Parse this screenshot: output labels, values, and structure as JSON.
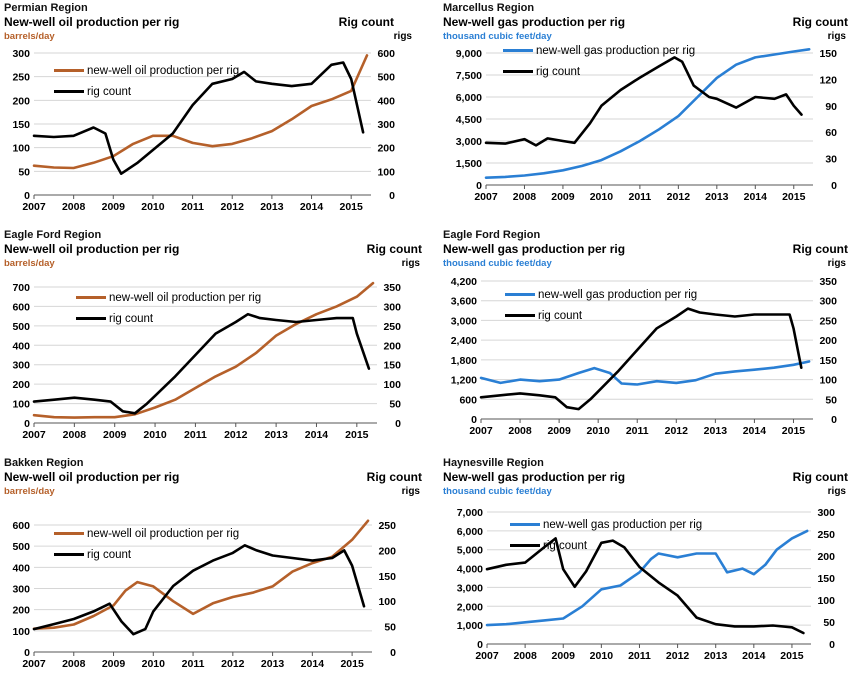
{
  "colors": {
    "oil": "#b5602a",
    "gas": "#2a7fd4",
    "rig": "#000000"
  },
  "chart_data": [
    {
      "type": "line",
      "region": "Permian Region",
      "title": "New-well oil production per rig",
      "ylabel": "barrels/day",
      "y2title": "Rig count",
      "y2label": "rigs",
      "ylim": [
        0,
        300
      ],
      "yticks": [
        0,
        50,
        100,
        150,
        200,
        250,
        300
      ],
      "ytick_labels": [
        "0",
        "50",
        "100",
        "150",
        "200",
        "250",
        "300"
      ],
      "y2lim": [
        0,
        600
      ],
      "y2ticks": [
        0,
        100,
        200,
        300,
        400,
        500,
        600
      ],
      "xlim": [
        2007,
        2015.5
      ],
      "xticks": [
        "2007",
        "2008",
        "2009",
        "2010",
        "2011",
        "2012",
        "2013",
        "2014",
        "2015"
      ],
      "series": [
        {
          "name": "new-well oil production per rig",
          "axis": "left",
          "color_key": "oil",
          "x": [
            2007.0,
            2007.5,
            2008.0,
            2008.5,
            2009.0,
            2009.5,
            2010.0,
            2010.5,
            2011.0,
            2011.5,
            2012.0,
            2012.5,
            2013.0,
            2013.5,
            2014.0,
            2014.5,
            2015.0,
            2015.4
          ],
          "y": [
            62,
            58,
            57,
            68,
            82,
            108,
            125,
            125,
            110,
            103,
            108,
            120,
            135,
            160,
            188,
            202,
            220,
            295
          ]
        },
        {
          "name": "rig count",
          "axis": "right",
          "color_key": "rig",
          "x": [
            2007.0,
            2007.5,
            2008.0,
            2008.5,
            2008.8,
            2009.0,
            2009.2,
            2009.6,
            2010.0,
            2010.5,
            2011.0,
            2011.5,
            2012.0,
            2012.3,
            2012.6,
            2013.0,
            2013.5,
            2014.0,
            2014.5,
            2014.8,
            2015.0,
            2015.3
          ],
          "y": [
            250,
            245,
            250,
            285,
            260,
            150,
            90,
            135,
            190,
            260,
            380,
            470,
            490,
            520,
            480,
            470,
            460,
            470,
            550,
            560,
            490,
            265
          ]
        }
      ]
    },
    {
      "type": "line",
      "region": "Marcellus Region",
      "title": "New-well gas production per rig",
      "ylabel": "thousand cubic feet/day",
      "y2title": "Rig count",
      "y2label": "rigs",
      "ylim": [
        0,
        9000
      ],
      "yticks": [
        0,
        1500,
        3000,
        4500,
        6000,
        7500,
        9000
      ],
      "ytick_labels": [
        "0",
        "1,500",
        "3,000",
        "4,500",
        "6,000",
        "7,500",
        "9,000"
      ],
      "y2lim": [
        0,
        150
      ],
      "y2ticks": [
        0,
        30,
        60,
        90,
        120,
        150
      ],
      "xlim": [
        2007,
        2015.5
      ],
      "xticks": [
        "2007",
        "2008",
        "2009",
        "2010",
        "2011",
        "2012",
        "2013",
        "2014",
        "2015"
      ],
      "series": [
        {
          "name": "new-well gas production per rig",
          "axis": "left",
          "color_key": "gas",
          "x": [
            2007.0,
            2007.5,
            2008.0,
            2008.5,
            2009.0,
            2009.5,
            2010.0,
            2010.5,
            2011.0,
            2011.5,
            2012.0,
            2012.5,
            2013.0,
            2013.5,
            2014.0,
            2014.5,
            2015.0,
            2015.4
          ],
          "y": [
            500,
            550,
            650,
            800,
            1000,
            1300,
            1700,
            2300,
            3000,
            3800,
            4700,
            6000,
            7300,
            8200,
            8700,
            8900,
            9100,
            9250
          ]
        },
        {
          "name": "rig count",
          "axis": "right",
          "color_key": "rig",
          "x": [
            2007.0,
            2007.5,
            2008.0,
            2008.3,
            2008.6,
            2009.0,
            2009.3,
            2009.7,
            2010.0,
            2010.5,
            2011.0,
            2011.5,
            2011.9,
            2012.1,
            2012.4,
            2012.8,
            2013.0,
            2013.5,
            2014.0,
            2014.5,
            2014.8,
            2015.0,
            2015.2
          ],
          "y": [
            48,
            47,
            52,
            45,
            53,
            50,
            48,
            70,
            90,
            108,
            122,
            135,
            145,
            140,
            113,
            100,
            98,
            88,
            100,
            98,
            103,
            90,
            80
          ]
        }
      ]
    },
    {
      "type": "line",
      "region": "Eagle Ford Region",
      "title": "New-well oil production per rig",
      "ylabel": "barrels/day",
      "y2title": "Rig count",
      "y2label": "rigs",
      "ylim": [
        0,
        700
      ],
      "yticks": [
        0,
        100,
        200,
        300,
        400,
        500,
        600,
        700
      ],
      "ytick_labels": [
        "0",
        "100",
        "200",
        "300",
        "400",
        "500",
        "600",
        "700"
      ],
      "y2lim": [
        0,
        350
      ],
      "y2ticks": [
        0,
        50,
        100,
        150,
        200,
        250,
        300,
        350
      ],
      "xlim": [
        2007,
        2015.5
      ],
      "xticks": [
        "2007",
        "2008",
        "2009",
        "2010",
        "2011",
        "2012",
        "2013",
        "2014",
        "2015"
      ],
      "series": [
        {
          "name": "new-well oil production per rig",
          "axis": "left",
          "color_key": "oil",
          "x": [
            2007.0,
            2007.5,
            2008.0,
            2008.5,
            2009.0,
            2009.5,
            2010.0,
            2010.5,
            2011.0,
            2011.5,
            2012.0,
            2012.5,
            2013.0,
            2013.5,
            2014.0,
            2014.5,
            2015.0,
            2015.4
          ],
          "y": [
            40,
            30,
            28,
            30,
            30,
            45,
            80,
            120,
            180,
            240,
            290,
            360,
            450,
            510,
            560,
            600,
            650,
            720
          ]
        },
        {
          "name": "rig count",
          "axis": "right",
          "color_key": "rig",
          "x": [
            2007.0,
            2007.5,
            2008.0,
            2008.5,
            2008.9,
            2009.2,
            2009.5,
            2009.8,
            2010.0,
            2010.5,
            2011.0,
            2011.5,
            2012.0,
            2012.3,
            2012.6,
            2013.0,
            2013.5,
            2014.0,
            2014.5,
            2014.9,
            2015.0,
            2015.3
          ],
          "y": [
            55,
            60,
            65,
            60,
            55,
            30,
            25,
            50,
            70,
            120,
            175,
            230,
            260,
            280,
            270,
            265,
            260,
            265,
            270,
            270,
            230,
            140
          ]
        }
      ]
    },
    {
      "type": "line",
      "region": "Eagle Ford Region",
      "title": "New-well gas production per rig",
      "ylabel": "thousand cubic feet/day",
      "y2title": "Rig count",
      "y2label": "rigs",
      "ylim": [
        0,
        4200
      ],
      "yticks": [
        0,
        600,
        1200,
        1800,
        2400,
        3000,
        3600,
        4200
      ],
      "ytick_labels": [
        "0",
        "600",
        "1,200",
        "1,800",
        "2,400",
        "3,000",
        "3,600",
        "4,200"
      ],
      "y2lim": [
        0,
        350
      ],
      "y2ticks": [
        0,
        50,
        100,
        150,
        200,
        250,
        300,
        350
      ],
      "xlim": [
        2007,
        2015.5
      ],
      "xticks": [
        "2007",
        "2008",
        "2009",
        "2010",
        "2011",
        "2012",
        "2013",
        "2014",
        "2015"
      ],
      "series": [
        {
          "name": "new-well gas production per rig",
          "axis": "left",
          "color_key": "gas",
          "x": [
            2007.0,
            2007.5,
            2008.0,
            2008.5,
            2009.0,
            2009.5,
            2009.9,
            2010.3,
            2010.6,
            2011.0,
            2011.5,
            2012.0,
            2012.5,
            2013.0,
            2013.5,
            2014.0,
            2014.5,
            2015.0,
            2015.4
          ],
          "y": [
            1250,
            1100,
            1200,
            1150,
            1200,
            1400,
            1550,
            1400,
            1080,
            1050,
            1150,
            1100,
            1180,
            1380,
            1450,
            1500,
            1560,
            1650,
            1750
          ]
        },
        {
          "name": "rig count",
          "axis": "right",
          "color_key": "rig",
          "x": [
            2007.0,
            2007.5,
            2008.0,
            2008.5,
            2008.9,
            2009.2,
            2009.5,
            2009.8,
            2010.0,
            2010.5,
            2011.0,
            2011.5,
            2012.0,
            2012.3,
            2012.6,
            2013.0,
            2013.5,
            2014.0,
            2014.5,
            2014.9,
            2015.0,
            2015.2
          ],
          "y": [
            55,
            60,
            65,
            60,
            55,
            30,
            25,
            50,
            70,
            120,
            175,
            230,
            260,
            280,
            270,
            265,
            260,
            265,
            265,
            265,
            230,
            130
          ]
        }
      ]
    },
    {
      "type": "line",
      "region": "Bakken Region",
      "title": "New-well oil production per rig",
      "ylabel": "barrels/day",
      "y2title": "Rig count",
      "y2label": "rigs",
      "ylim": [
        0,
        600
      ],
      "yticks": [
        0,
        100,
        200,
        300,
        400,
        500,
        600
      ],
      "ytick_labels": [
        "0",
        "100",
        "200",
        "300",
        "400",
        "500",
        "600"
      ],
      "y2lim": [
        0,
        250
      ],
      "y2ticks": [
        0,
        50,
        100,
        150,
        200,
        250
      ],
      "xlim": [
        2007,
        2015.5
      ],
      "xticks": [
        "2007",
        "2008",
        "2009",
        "2010",
        "2011",
        "2012",
        "2013",
        "2014",
        "2015"
      ],
      "series": [
        {
          "name": "new-well oil production per rig",
          "axis": "left",
          "color_key": "oil",
          "x": [
            2007.0,
            2007.5,
            2008.0,
            2008.5,
            2009.0,
            2009.3,
            2009.6,
            2010.0,
            2010.5,
            2011.0,
            2011.5,
            2012.0,
            2012.5,
            2013.0,
            2013.5,
            2014.0,
            2014.5,
            2015.0,
            2015.4
          ],
          "y": [
            110,
            115,
            130,
            170,
            220,
            290,
            330,
            310,
            240,
            180,
            230,
            260,
            280,
            310,
            380,
            420,
            450,
            530,
            620
          ]
        },
        {
          "name": "rig count",
          "axis": "right",
          "color_key": "rig",
          "x": [
            2007.0,
            2007.5,
            2008.0,
            2008.5,
            2008.9,
            2009.2,
            2009.5,
            2009.8,
            2010.0,
            2010.5,
            2011.0,
            2011.5,
            2012.0,
            2012.3,
            2012.6,
            2013.0,
            2013.5,
            2014.0,
            2014.5,
            2014.8,
            2015.0,
            2015.3
          ],
          "y": [
            45,
            55,
            65,
            80,
            95,
            60,
            35,
            45,
            80,
            130,
            160,
            180,
            195,
            210,
            200,
            190,
            185,
            180,
            185,
            200,
            170,
            90
          ]
        }
      ]
    },
    {
      "type": "line",
      "region": "Haynesville Region",
      "title": "New-well gas production per rig",
      "ylabel": "thousand cubic feet/day",
      "y2title": "Rig count",
      "y2label": "rigs",
      "ylim": [
        0,
        7000
      ],
      "yticks": [
        0,
        1000,
        2000,
        3000,
        4000,
        5000,
        6000,
        7000
      ],
      "ytick_labels": [
        "0",
        "1,000",
        "2,000",
        "3,000",
        "4,000",
        "5,000",
        "6,000",
        "7,000"
      ],
      "y2lim": [
        0,
        300
      ],
      "y2ticks": [
        0,
        50,
        100,
        150,
        200,
        250,
        300
      ],
      "xlim": [
        2007,
        2015.5
      ],
      "xticks": [
        "2007",
        "2008",
        "2009",
        "2010",
        "2011",
        "2012",
        "2013",
        "2014",
        "2015"
      ],
      "series": [
        {
          "name": "new-well gas production per rig",
          "axis": "left",
          "color_key": "gas",
          "x": [
            2007.0,
            2007.5,
            2008.0,
            2008.5,
            2009.0,
            2009.5,
            2010.0,
            2010.5,
            2011.0,
            2011.3,
            2011.5,
            2012.0,
            2012.5,
            2013.0,
            2013.3,
            2013.7,
            2014.0,
            2014.3,
            2014.6,
            2015.0,
            2015.4
          ],
          "y": [
            1000,
            1050,
            1150,
            1250,
            1350,
            2000,
            2900,
            3100,
            3800,
            4500,
            4800,
            4600,
            4800,
            4800,
            3800,
            4000,
            3700,
            4200,
            5000,
            5600,
            6000
          ]
        },
        {
          "name": "rig count",
          "axis": "right",
          "color_key": "rig",
          "x": [
            2007.0,
            2007.5,
            2008.0,
            2008.5,
            2008.8,
            2009.0,
            2009.3,
            2009.6,
            2010.0,
            2010.3,
            2010.6,
            2011.0,
            2011.5,
            2012.0,
            2012.5,
            2013.0,
            2013.5,
            2014.0,
            2014.5,
            2015.0,
            2015.3
          ],
          "y": [
            170,
            180,
            185,
            220,
            240,
            170,
            130,
            165,
            230,
            235,
            220,
            175,
            140,
            110,
            60,
            45,
            40,
            40,
            42,
            38,
            25
          ]
        }
      ]
    }
  ]
}
